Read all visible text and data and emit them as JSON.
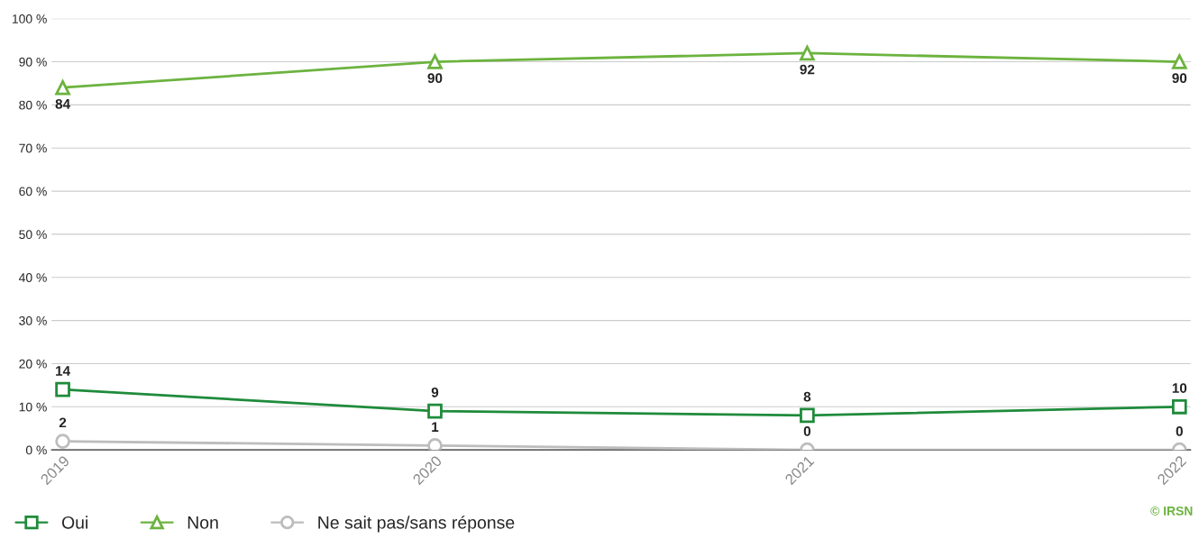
{
  "chart_data": {
    "type": "line",
    "categories": [
      "2019",
      "2020",
      "2021",
      "2022"
    ],
    "series": [
      {
        "name": "Oui",
        "color": "#1f8b3b",
        "marker": "square",
        "values": [
          14,
          9,
          8,
          10
        ]
      },
      {
        "name": "Non",
        "color": "#6cb33f",
        "marker": "triangle",
        "values": [
          84,
          90,
          92,
          90
        ]
      },
      {
        "name": "Ne sait pas/sans réponse",
        "color": "#bdbdbd",
        "marker": "circle",
        "values": [
          2,
          1,
          0,
          0
        ]
      }
    ],
    "ylim": [
      0,
      100
    ],
    "yticks": [
      {
        "value": 0,
        "label": "0 %"
      },
      {
        "value": 10,
        "label": "10 %"
      },
      {
        "value": 20,
        "label": "20 %"
      },
      {
        "value": 30,
        "label": "30 %"
      },
      {
        "value": 40,
        "label": "40 %"
      },
      {
        "value": 50,
        "label": "50 %"
      },
      {
        "value": 60,
        "label": "60 %"
      },
      {
        "value": 70,
        "label": "70 %"
      },
      {
        "value": 80,
        "label": "80 %"
      },
      {
        "value": 90,
        "label": "90 %"
      },
      {
        "value": 100,
        "label": "100 %"
      }
    ],
    "grid": "y",
    "legend": "bottom left",
    "data_labels": true,
    "line_style": "solid",
    "annotations": [
      "© IRSN"
    ]
  }
}
